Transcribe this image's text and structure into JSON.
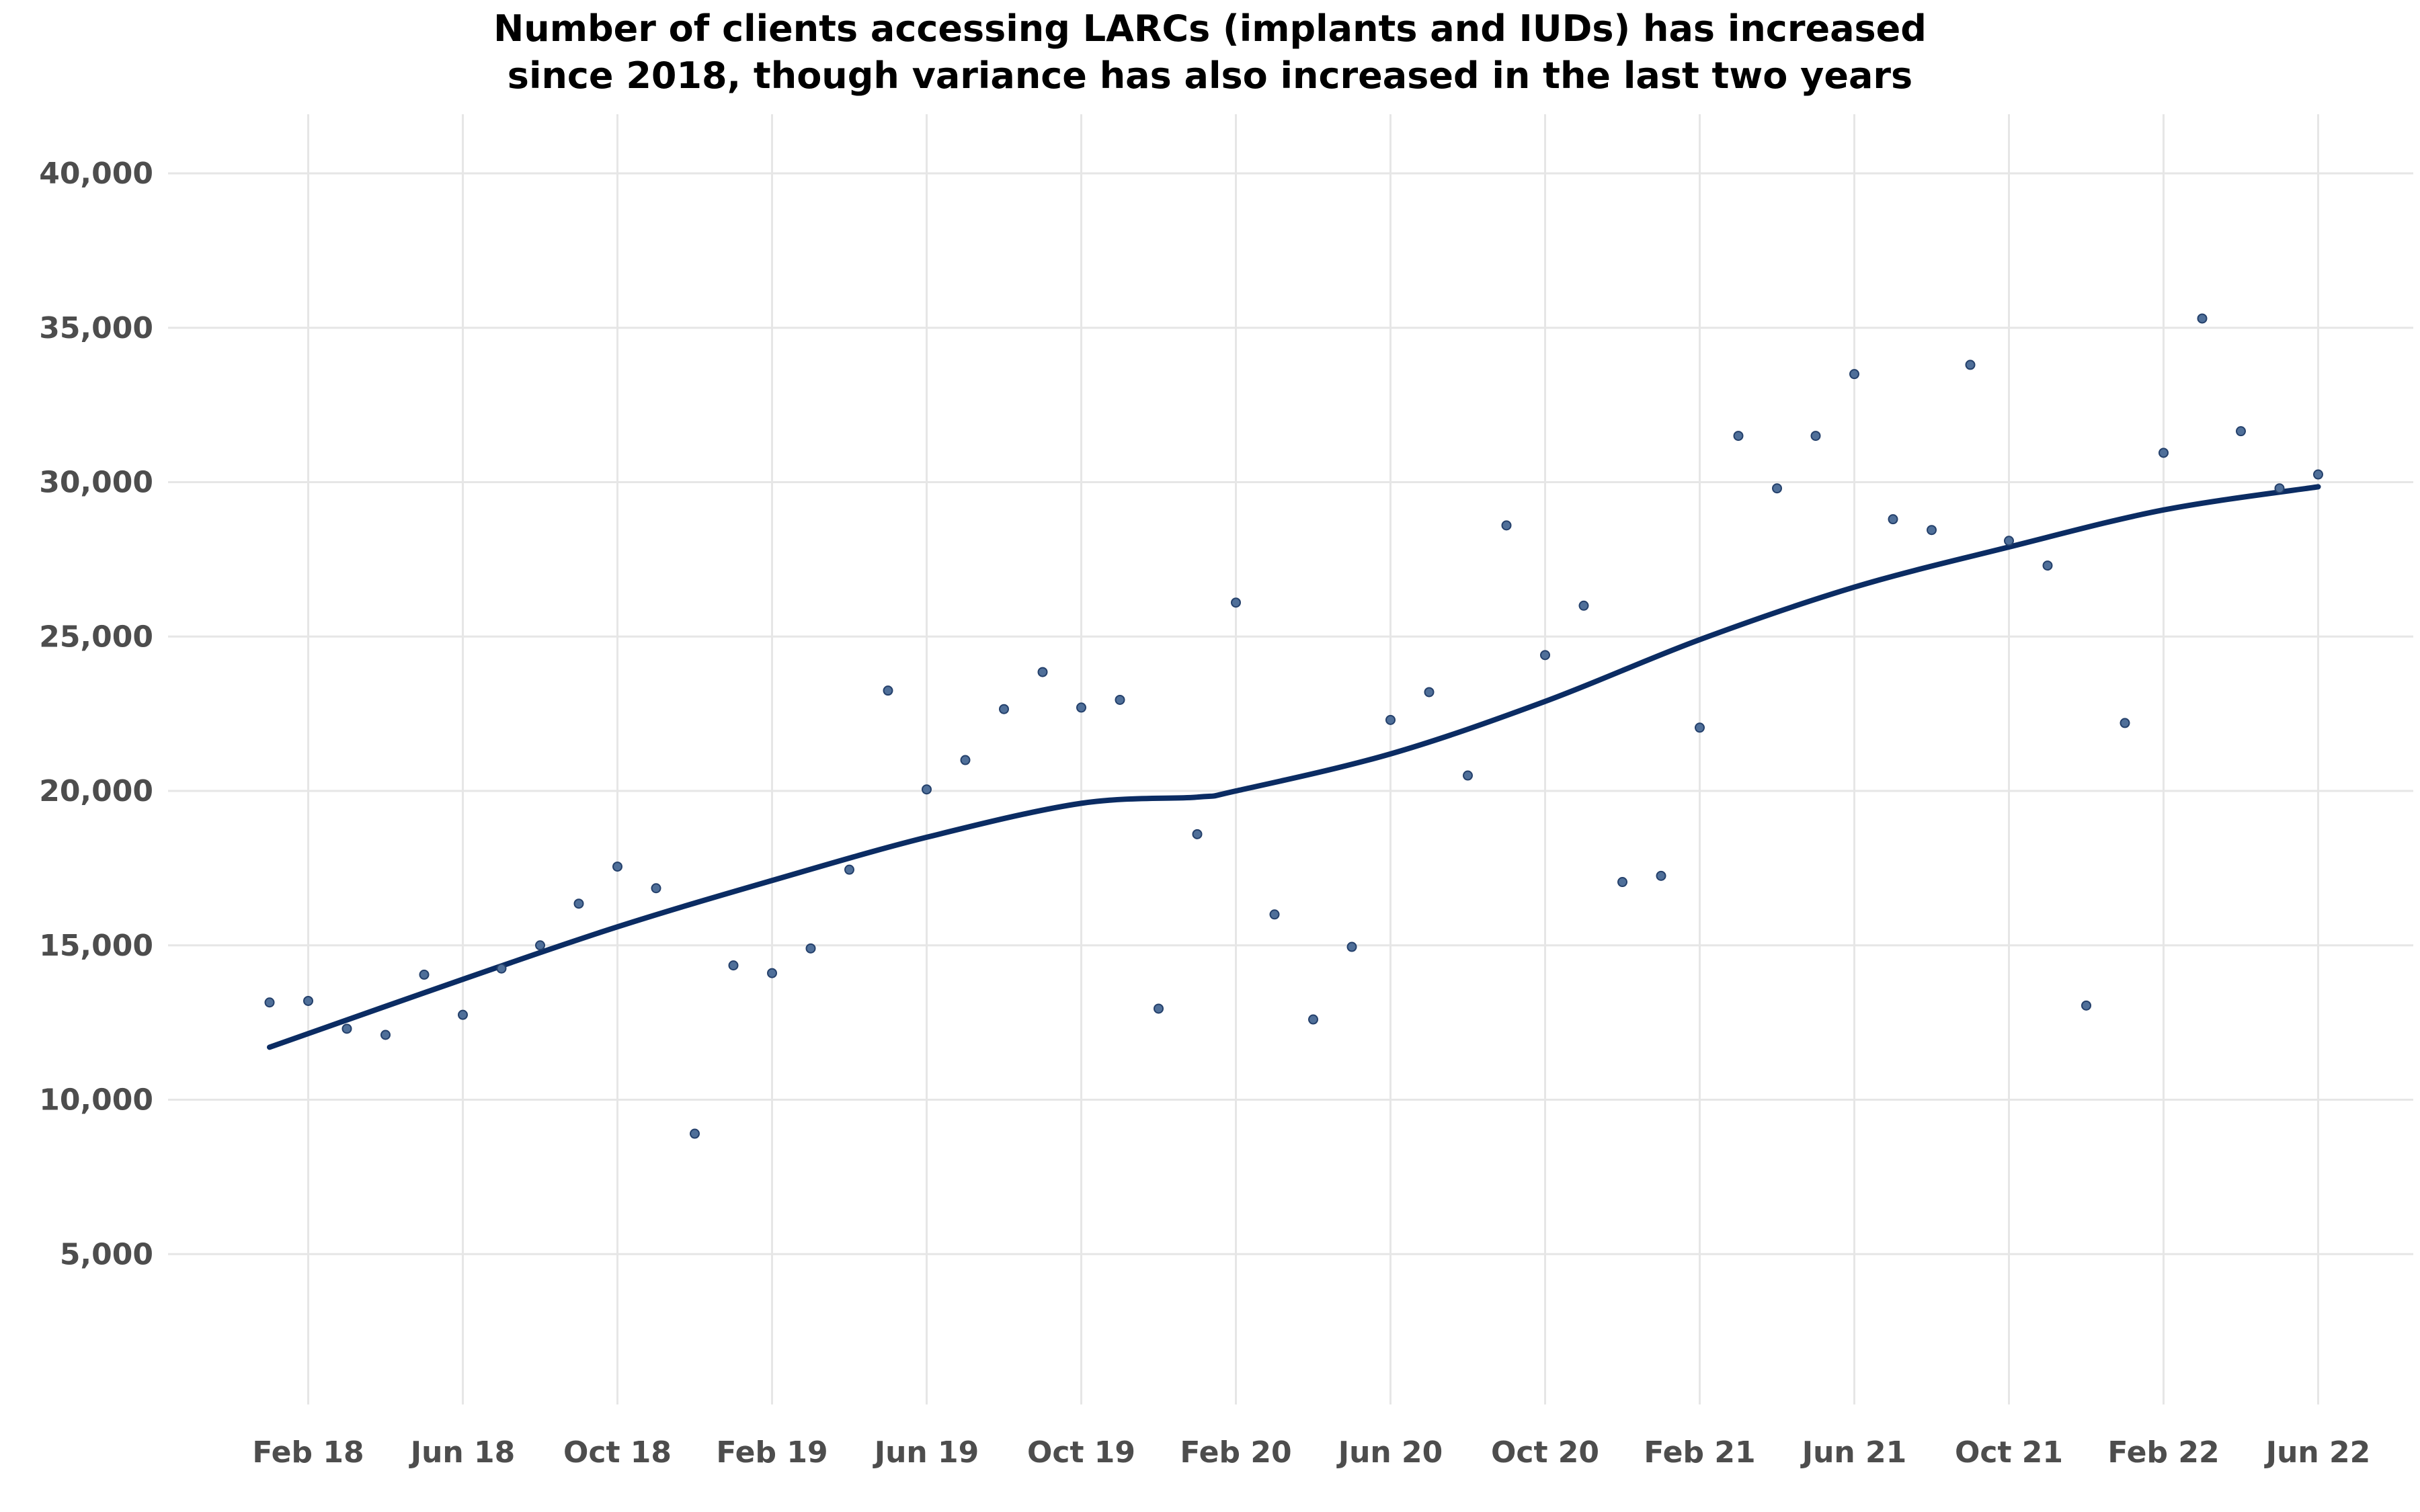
{
  "chart_data": {
    "type": "scatter",
    "title_lines": [
      "Number of clients accessing LARCs (implants and IUDs) has increased",
      "since 2018, though variance has also increased in the last two years"
    ],
    "xlabel": "",
    "ylabel": "",
    "x_ticks": [
      "Feb 18",
      "Jun 18",
      "Oct 18",
      "Feb 19",
      "Jun 19",
      "Oct 19",
      "Feb 20",
      "Jun 20",
      "Oct 20",
      "Feb 21",
      "Jun 21",
      "Oct 21",
      "Feb 22",
      "Jun 22"
    ],
    "y_ticks": [
      "5,000",
      "10,000",
      "15,000",
      "20,000",
      "25,000",
      "30,000",
      "35,000",
      "40,000"
    ],
    "y_tick_values": [
      5000,
      10000,
      15000,
      20000,
      25000,
      30000,
      35000,
      40000
    ],
    "ylim": [
      0,
      42000
    ],
    "x_range": [
      "2018-01",
      "2022-06"
    ],
    "grid": true,
    "colors": {
      "points": "#4f6f99",
      "points_stroke": "#24406b",
      "trend": "#0b2c63",
      "grid": "#e6e6e6"
    },
    "series": [
      {
        "type": "scatter",
        "x": [
          "2018-01",
          "2018-02",
          "2018-03",
          "2018-04",
          "2018-05",
          "2018-06",
          "2018-07",
          "2018-08",
          "2018-09",
          "2018-10",
          "2018-11",
          "2018-12",
          "2019-01",
          "2019-02",
          "2019-03",
          "2019-04",
          "2019-05",
          "2019-06",
          "2019-07",
          "2019-08",
          "2019-09",
          "2019-10",
          "2019-11",
          "2019-12",
          "2020-01",
          "2020-02",
          "2020-03",
          "2020-04",
          "2020-05",
          "2020-06",
          "2020-07",
          "2020-08",
          "2020-09",
          "2020-10",
          "2020-11",
          "2020-12",
          "2021-01",
          "2021-02",
          "2021-03",
          "2021-04",
          "2021-05",
          "2021-06",
          "2021-07",
          "2021-08",
          "2021-09",
          "2021-10",
          "2021-11",
          "2021-12",
          "2022-01",
          "2022-02",
          "2022-03",
          "2022-04",
          "2022-05",
          "2022-06"
        ],
        "y": [
          13150,
          13200,
          12300,
          12100,
          14050,
          12750,
          14250,
          15000,
          16350,
          17550,
          16850,
          8900,
          14350,
          14100,
          14900,
          17450,
          23250,
          20050,
          21000,
          22650,
          23850,
          22700,
          22950,
          12950,
          18600,
          26100,
          16000,
          12600,
          14950,
          22300,
          23200,
          20500,
          28600,
          24400,
          26000,
          17050,
          17250,
          22050,
          31500,
          29800,
          31500,
          33500,
          28800,
          28450,
          33800,
          28100,
          27300,
          13050,
          22200,
          30950,
          35300,
          31650,
          29800,
          30250
        ]
      },
      {
        "type": "line",
        "x": [
          "2018-01",
          "2018-06",
          "2018-10",
          "2019-02",
          "2019-06",
          "2019-10",
          "2020-01",
          "2020-02",
          "2020-06",
          "2020-10",
          "2021-02",
          "2021-06",
          "2021-10",
          "2022-02",
          "2022-06"
        ],
        "y": [
          11700,
          13900,
          15600,
          17100,
          18500,
          19600,
          19800,
          20000,
          21200,
          22900,
          24900,
          26600,
          27900,
          29100,
          29850
        ]
      }
    ]
  }
}
